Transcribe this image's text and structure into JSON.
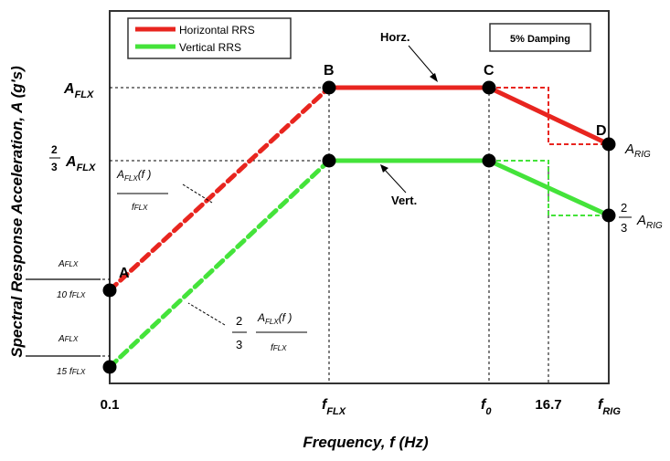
{
  "chart_data": {
    "type": "line",
    "xlabel": "Frequency, f  (Hz)",
    "ylabel": "Spectral Response Acceleration, A  (g's)",
    "damping_label": "5% Damping",
    "x_ticks": [
      {
        "key": "x0",
        "main": "0.1",
        "sub": ""
      },
      {
        "key": "xflx",
        "main": "f",
        "sub": "FLX"
      },
      {
        "key": "x0f",
        "main": "f",
        "sub": "0"
      },
      {
        "key": "x167",
        "main": "16.7",
        "sub": ""
      },
      {
        "key": "xrig",
        "main": "f",
        "sub": "RIG"
      }
    ],
    "y_levels": [
      {
        "key": "yflx",
        "main": "A",
        "sub": "FLX",
        "prefix": ""
      },
      {
        "key": "y23",
        "main": "A",
        "sub": "FLX",
        "prefix": "2/3"
      },
      {
        "key": "ya",
        "num": "A",
        "num_sub": "FLX",
        "den": "10 f",
        "den_sub": "FLX"
      },
      {
        "key": "yb",
        "num": "A",
        "num_sub": "FLX",
        "den": "15 f",
        "den_sub": "FLX"
      }
    ],
    "legend": [
      {
        "name": "Horizontal RRS",
        "color": "#e8251f"
      },
      {
        "name": "Vertical RRS",
        "color": "#44e33a"
      }
    ],
    "series": [
      {
        "name": "Horizontal RRS",
        "color": "#e8251f",
        "points": [
          {
            "x": "0.1",
            "y": "A_FLX/(10 f_FLX)",
            "label": "A",
            "style": "dashed"
          },
          {
            "x": "f_FLX",
            "y": "A_FLX",
            "label": "B",
            "style": "solid"
          },
          {
            "x": "f_0",
            "y": "A_FLX",
            "label": "C",
            "style": "solid"
          },
          {
            "x": "f_RIG",
            "y": "A_RIG",
            "label": "D",
            "style": ""
          }
        ]
      },
      {
        "name": "Vertical RRS",
        "color": "#44e33a",
        "points": [
          {
            "x": "0.1",
            "y": "A_FLX/(15 f_FLX)",
            "label": "",
            "style": "dashed"
          },
          {
            "x": "f_FLX",
            "y": "2/3 A_FLX",
            "label": "",
            "style": "solid"
          },
          {
            "x": "f_0",
            "y": "2/3 A_FLX",
            "label": "",
            "style": "solid"
          },
          {
            "x": "f_RIG",
            "y": "2/3 A_RIG",
            "label": "",
            "style": ""
          }
        ]
      }
    ],
    "annotations": {
      "horz": "Horz.",
      "vert": "Vert.",
      "slope_h_num": "A",
      "slope_h_num_sub": "FLX",
      "slope_h_num_tail": "(f )",
      "slope_h_den": "f",
      "slope_h_den_sub": "FLX",
      "slope_v_coef_num": "2",
      "slope_v_coef_den": "3",
      "slope_v_num": "A",
      "slope_v_num_sub": "FLX",
      "slope_v_num_tail": "(f )",
      "slope_v_den": "f",
      "slope_v_den_sub": "FLX",
      "d_label_main": "A",
      "d_label_sub": "RIG",
      "d2_coef_num": "2",
      "d2_coef_den": "3",
      "d2_label_main": "A",
      "d2_label_sub": "RIG"
    }
  }
}
